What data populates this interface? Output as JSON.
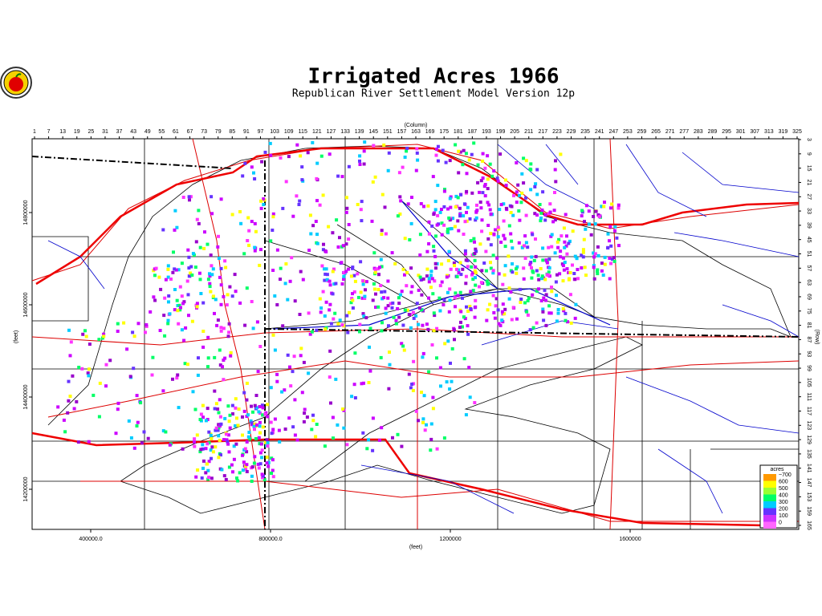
{
  "header": {
    "title": "Irrigated Acres 1966",
    "subtitle": "Republican River Settlement Model Version 12p"
  },
  "map": {
    "column_axis": {
      "label": "(Column)",
      "ticks": [
        1,
        7,
        13,
        19,
        25,
        31,
        37,
        43,
        49,
        55,
        61,
        67,
        73,
        79,
        85,
        91,
        97,
        103,
        109,
        115,
        121,
        127,
        133,
        139,
        145,
        151,
        157,
        163,
        169,
        175,
        181,
        187,
        193,
        199,
        205,
        211,
        217,
        223,
        229,
        235,
        241,
        247,
        253,
        259,
        265,
        271,
        277,
        283,
        289,
        295,
        301,
        307,
        313,
        319,
        325
      ]
    },
    "row_axis": {
      "label": "(Row)",
      "ticks": [
        3,
        9,
        15,
        21,
        27,
        33,
        39,
        45,
        51,
        57,
        63,
        69,
        75,
        81,
        87,
        93,
        99,
        105,
        111,
        117,
        123,
        129,
        135,
        141,
        147,
        153,
        159,
        165
      ]
    },
    "x_feet_axis": {
      "label": "(feet)",
      "ticks": [
        {
          "value": 400000,
          "label": "400000.0"
        },
        {
          "value": 800000,
          "label": "800000.0"
        },
        1200000,
        1600000
      ]
    },
    "y_feet_axis": {
      "label": "(feet)",
      "ticks": [
        14800000,
        14600000,
        14400000,
        14200000
      ]
    },
    "legend": {
      "title": "acres",
      "items": [
        {
          "value": 700,
          "label": "~700",
          "color": "#ff9900"
        },
        {
          "value": 600,
          "label": "600",
          "color": "#ffff00"
        },
        {
          "value": 500,
          "label": "500",
          "color": "#99ff33"
        },
        {
          "value": 400,
          "label": "400",
          "color": "#00ff66"
        },
        {
          "value": 300,
          "label": "300",
          "color": "#00ccff"
        },
        {
          "value": 200,
          "label": "200",
          "color": "#6633ff"
        },
        {
          "value": 100,
          "label": "100",
          "color": "#cc33ff"
        },
        {
          "value": 0,
          "label": "0",
          "color": "#ff66ff"
        }
      ]
    }
  }
}
